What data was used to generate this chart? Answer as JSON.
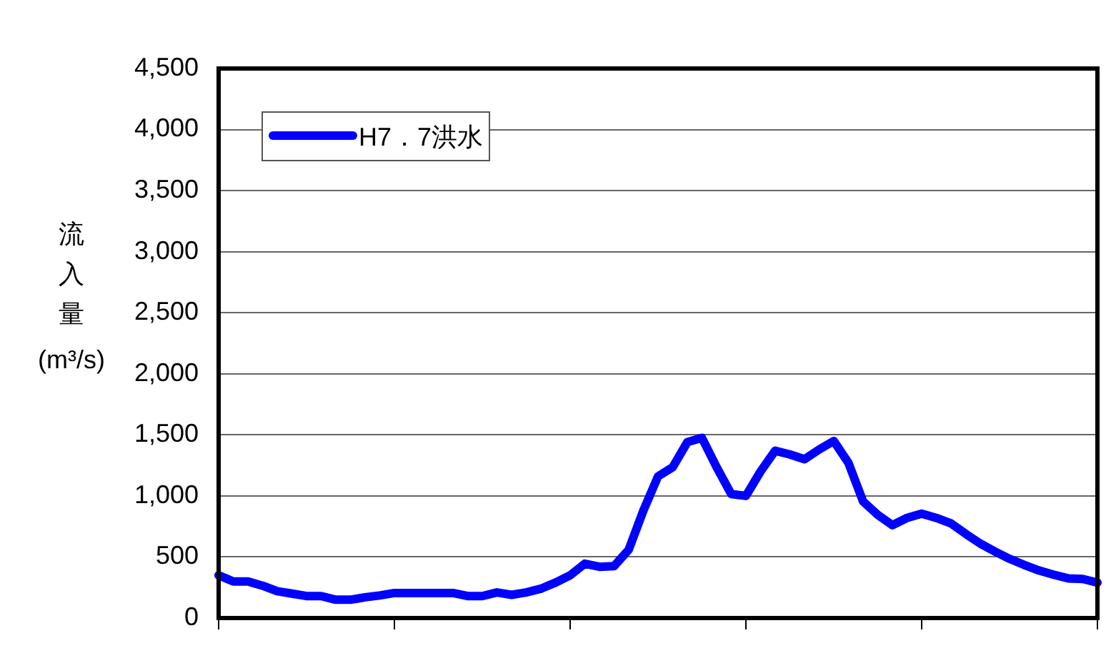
{
  "chart_data": {
    "type": "line",
    "ylabel": "流入量(m³/s)",
    "categories": [
      null,
      null,
      null,
      null,
      null,
      null,
      null,
      null,
      null,
      null,
      null,
      null,
      null,
      null,
      null,
      null,
      null,
      null,
      null,
      null,
      null,
      null,
      null,
      null,
      null,
      null,
      null,
      null,
      null,
      null,
      null,
      null,
      null,
      null,
      null,
      null,
      null,
      null,
      null,
      null,
      null,
      null,
      null,
      null,
      null,
      null,
      null,
      null,
      null,
      null,
      null,
      null,
      null,
      null,
      null,
      null,
      null,
      null,
      null,
      null,
      null
    ],
    "ylim": [
      0,
      4500
    ],
    "yticks": [
      {
        "value": 0,
        "label": "0"
      },
      {
        "value": 500,
        "label": "500"
      },
      {
        "value": 1000,
        "label": "1,000"
      },
      {
        "value": 1500,
        "label": "1,500"
      },
      {
        "value": 2000,
        "label": "2,000"
      },
      {
        "value": 2500,
        "label": "2,500"
      },
      {
        "value": 3000,
        "label": "3,000"
      },
      {
        "value": 3500,
        "label": "3,500"
      },
      {
        "value": 4000,
        "label": "4,000"
      },
      {
        "value": 4500,
        "label": "4,500"
      }
    ],
    "grid": "y",
    "legend": "top left",
    "marker": "none",
    "line_style": "solid",
    "series": [
      {
        "name": "H7．7洪水",
        "color": "#0000ff",
        "values": [
          350,
          300,
          300,
          265,
          220,
          200,
          180,
          180,
          150,
          150,
          170,
          185,
          205,
          205,
          205,
          205,
          205,
          180,
          180,
          210,
          190,
          210,
          240,
          290,
          350,
          445,
          420,
          425,
          560,
          880,
          1160,
          1235,
          1440,
          1475,
          1235,
          1015,
          1000,
          1200,
          1370,
          1340,
          1300,
          1380,
          1450,
          1270,
          955,
          845,
          760,
          820,
          855,
          820,
          775,
          690,
          610,
          545,
          485,
          435,
          390,
          355,
          325,
          320,
          290
        ]
      }
    ]
  }
}
